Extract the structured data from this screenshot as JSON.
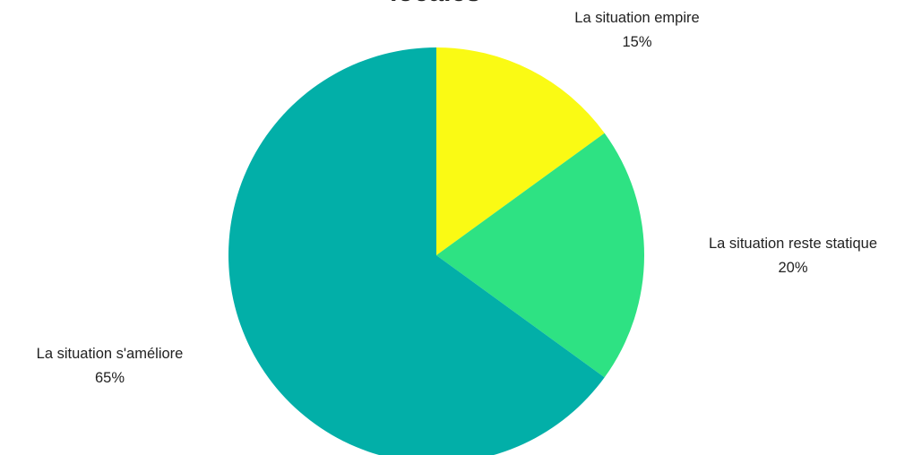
{
  "chart_data": {
    "type": "pie",
    "title": "locales",
    "slices": [
      {
        "label": "La situation empire",
        "value": 15,
        "value_label": "15%",
        "color": "#FAFA14"
      },
      {
        "label": "La situation reste statique",
        "value": 20,
        "value_label": "20%",
        "color": "#2EE283"
      },
      {
        "label": "La situation s'améliore",
        "value": 65,
        "value_label": "65%",
        "color": "#02AFA8"
      }
    ],
    "start_angle": "12 o'clock",
    "direction": "clockwise",
    "legend": "none"
  }
}
